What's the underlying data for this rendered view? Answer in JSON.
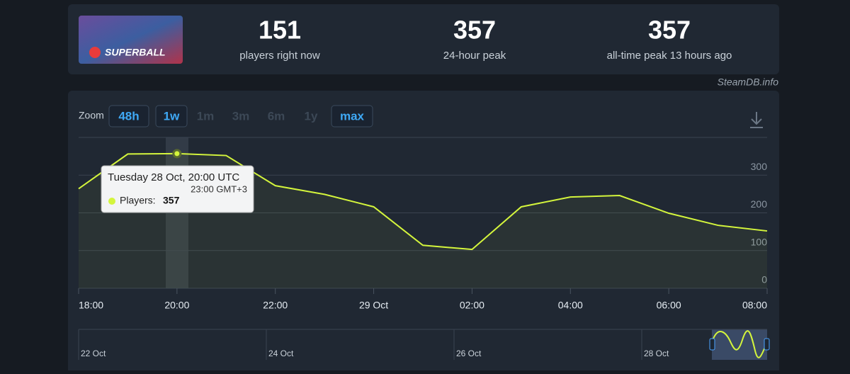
{
  "header": {
    "logo_text": "SUPERBALL",
    "stats": [
      {
        "value": 151,
        "label": "players right now"
      },
      {
        "value": 357,
        "label": "24-hour peak"
      },
      {
        "value": 357,
        "label": "all-time peak 13 hours ago"
      }
    ],
    "source": "SteamDB.info"
  },
  "zoom": {
    "label": "Zoom",
    "options": [
      "48h",
      "1w",
      "1m",
      "3m",
      "6m",
      "1y",
      "max"
    ]
  },
  "tooltip": {
    "title": "Tuesday 28 Oct, 20:00 UTC",
    "subtitle": "23:00 GMT+3",
    "label": "Players:"
  },
  "navigator": {
    "labels": [
      "22 Oct",
      "24 Oct",
      "26 Oct",
      "28 Oct"
    ]
  },
  "chart_data": {
    "type": "line",
    "categories": [
      "18:00",
      null,
      "20:00",
      null,
      "22:00",
      null,
      "29 Oct",
      null,
      "02:00",
      null,
      "04:00",
      null,
      "06:00",
      null,
      "08:00"
    ],
    "series": [
      {
        "name": "Players",
        "color": "#d4f53c",
        "values": [
          264,
          356,
          357,
          352,
          272,
          249,
          216,
          114,
          103,
          216,
          242,
          246,
          199,
          167,
          152
        ]
      }
    ],
    "ylim": [
      0,
      400
    ],
    "yticks": [
      0,
      100,
      200,
      300
    ],
    "grid": true
  }
}
